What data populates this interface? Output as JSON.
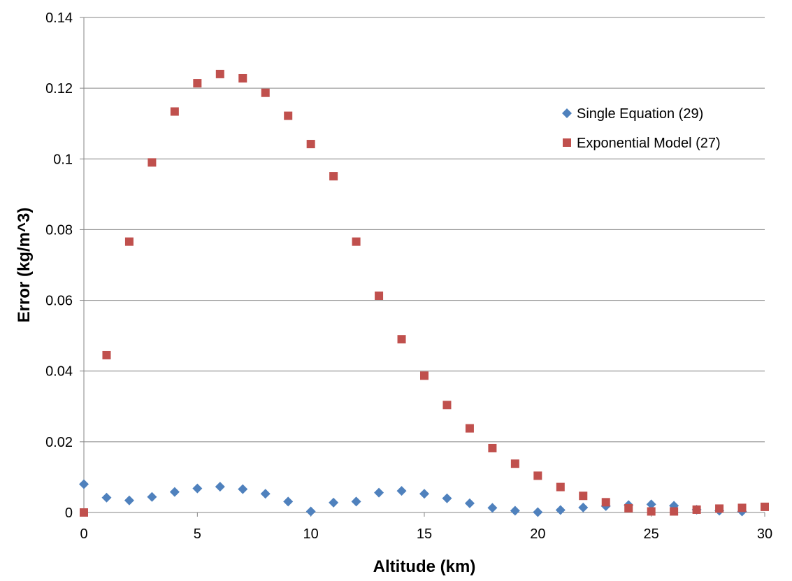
{
  "chart_data": {
    "type": "scatter",
    "xlabel": "Altitude (km)",
    "ylabel": "Error (kg/m^3)",
    "xlim": [
      0,
      30
    ],
    "ylim": [
      0,
      0.14
    ],
    "x_ticks": [
      "0",
      "5",
      "10",
      "15",
      "20",
      "25",
      "30"
    ],
    "y_ticks": [
      "0",
      "0.02",
      "0.04",
      "0.06",
      "0.08",
      "0.1",
      "0.12",
      "0.14"
    ],
    "grid": "horizontal",
    "legend_position": "right",
    "series": [
      {
        "name": "Single Equation (29)",
        "marker": "diamond",
        "color": "#4F81BD",
        "x": [
          0,
          1,
          2,
          3,
          4,
          5,
          6,
          7,
          8,
          9,
          10,
          11,
          12,
          13,
          14,
          15,
          16,
          17,
          18,
          19,
          20,
          21,
          22,
          23,
          24,
          25,
          26,
          27,
          28,
          29
        ],
        "y": [
          0.008,
          0.0042,
          0.0034,
          0.0044,
          0.0058,
          0.0068,
          0.0073,
          0.0066,
          0.0053,
          0.0031,
          0.0003,
          0.0028,
          0.0031,
          0.0056,
          0.0061,
          0.0053,
          0.004,
          0.0026,
          0.0013,
          0.0005,
          0.0001,
          0.0007,
          0.0014,
          0.0018,
          0.0021,
          0.0023,
          0.0019,
          0.0008,
          0.0005,
          0.0003
        ]
      },
      {
        "name": "Exponential Model (27)",
        "marker": "square",
        "color": "#C0504D",
        "x": [
          0,
          1,
          2,
          3,
          4,
          5,
          6,
          7,
          8,
          9,
          10,
          11,
          12,
          13,
          14,
          15,
          16,
          17,
          18,
          19,
          20,
          21,
          22,
          23,
          24,
          25,
          26,
          27,
          28,
          29,
          30
        ],
        "y": [
          0.0,
          0.0445,
          0.0766,
          0.099,
          0.1134,
          0.1214,
          0.124,
          0.1228,
          0.1187,
          0.1122,
          0.1042,
          0.0951,
          0.0766,
          0.0613,
          0.049,
          0.0387,
          0.0304,
          0.0238,
          0.0182,
          0.0138,
          0.0104,
          0.0072,
          0.0047,
          0.0029,
          0.0012,
          0.0003,
          0.0003,
          0.0008,
          0.0011,
          0.0013,
          0.0016
        ]
      }
    ]
  }
}
